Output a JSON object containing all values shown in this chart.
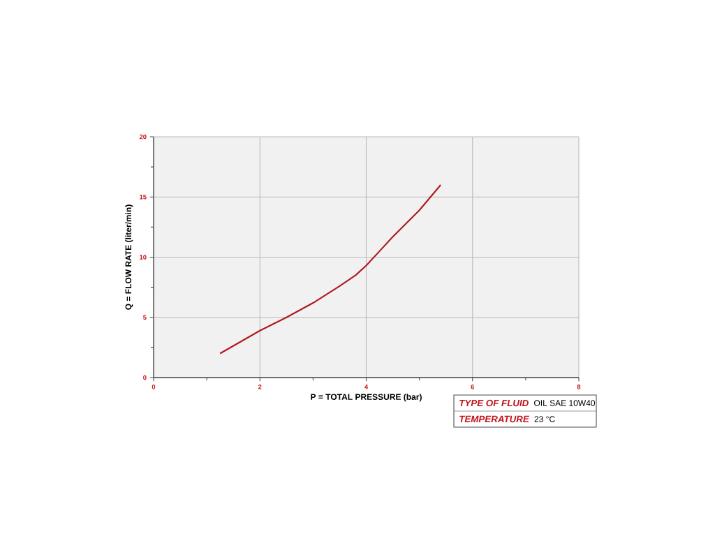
{
  "chart_data": {
    "type": "line",
    "xlabel": "P = TOTAL PRESSURE (bar)",
    "ylabel": "Q = FLOW RATE (liter/min)",
    "x": [
      1.25,
      2,
      2.5,
      3,
      3.5,
      3.8,
      4,
      4.25,
      4.5,
      5,
      5.4
    ],
    "series": [
      {
        "color": "#b0191e",
        "values": [
          2,
          3.9,
          5.0,
          6.2,
          7.6,
          8.5,
          9.3,
          10.5,
          11.7,
          13.9,
          16
        ]
      }
    ],
    "xlim": [
      0,
      8
    ],
    "ylim": [
      0,
      20
    ],
    "xticks": [
      0,
      {
        "value": 1,
        "label": null
      },
      2,
      {
        "value": 3,
        "label": null
      },
      4,
      {
        "value": 5,
        "label": null
      },
      6,
      {
        "value": 7,
        "label": null
      },
      8
    ],
    "yticks": [
      0,
      {
        "value": 2.5,
        "label": null
      },
      5,
      {
        "value": 7.5,
        "label": null
      },
      10,
      {
        "value": 12.5,
        "label": null
      },
      15,
      {
        "value": 17.5,
        "label": null
      },
      20
    ],
    "grid": true,
    "marker": "none",
    "line_style": "solid",
    "annotations": [
      "TYPE OF FLUID",
      "OIL SAE 10W40",
      "TEMPERATURE",
      "23 °C"
    ]
  }
}
